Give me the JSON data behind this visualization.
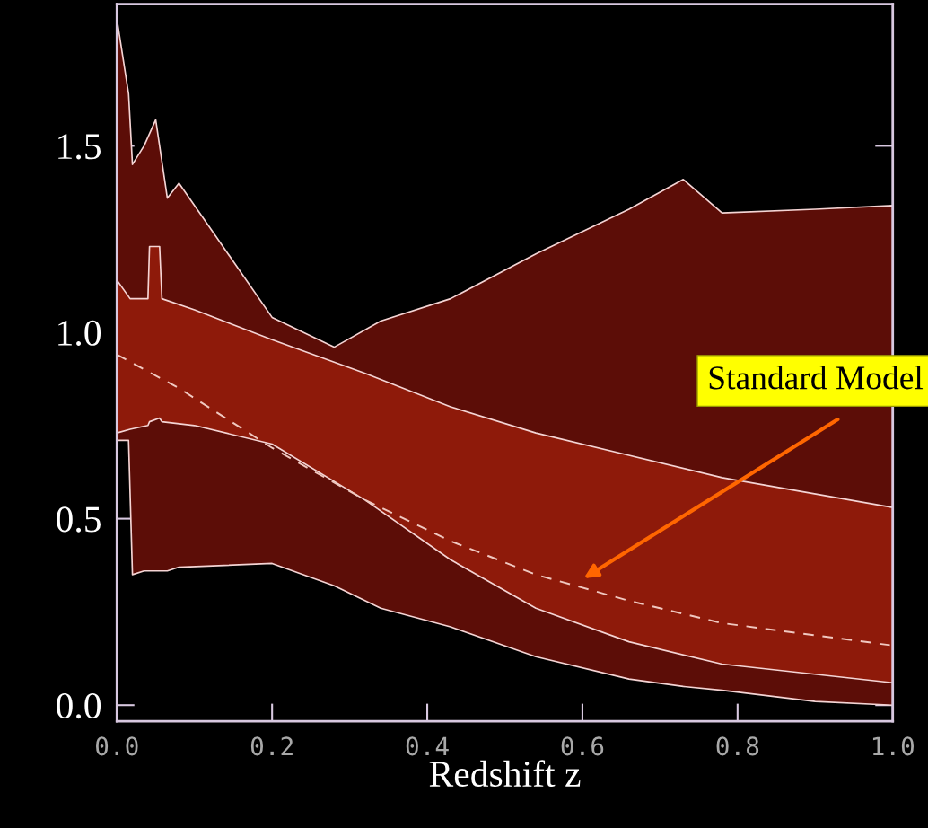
{
  "chart_data": {
    "type": "line",
    "xlabel": "Redshift z",
    "xlim": [
      0,
      1.0
    ],
    "ylim": [
      -0.043,
      1.88
    ],
    "xticks": [
      {
        "value": 0,
        "label": "0.0"
      },
      {
        "value": 0.2,
        "label": "0.2"
      },
      {
        "value": 0.4,
        "label": "0.4"
      },
      {
        "value": 0.6,
        "label": "0.6"
      },
      {
        "value": 0.8,
        "label": "0.8"
      },
      {
        "value": 1.0,
        "label": "1.0"
      }
    ],
    "yticks": [
      {
        "value": 0,
        "label": "0.0"
      },
      {
        "value": 0.5,
        "label": "0.5"
      },
      {
        "value": 1.0,
        "label": "1.0"
      },
      {
        "value": 1.5,
        "label": "1.5"
      }
    ],
    "grid": false,
    "series": [
      {
        "color": "#5c0d07",
        "x": [
          0,
          0.015,
          0.02,
          0.035,
          0.05,
          0.065,
          0.08,
          0.2,
          0.28,
          0.34,
          0.43,
          0.54,
          0.66,
          0.73,
          0.78,
          0.9,
          1.0
        ],
        "values": [
          null,
          null,
          null,
          null,
          null,
          null,
          null,
          null,
          null,
          null,
          null,
          null,
          null,
          null,
          null,
          null,
          null
        ],
        "upper": [
          1.84,
          1.64,
          1.45,
          1.5,
          1.57,
          1.36,
          1.4,
          1.04,
          0.96,
          1.03,
          1.09,
          1.21,
          1.33,
          1.41,
          1.32,
          1.33,
          1.34
        ],
        "lower": [
          0.71,
          0.71,
          0.35,
          0.36,
          0.36,
          0.36,
          0.37,
          0.38,
          0.32,
          0.26,
          0.21,
          0.13,
          0.07,
          0.05,
          0.04,
          0.01,
          0.0
        ]
      },
      {
        "color": "#8e1a0a",
        "x": [
          0,
          0.017,
          0.04,
          0.042,
          0.055,
          0.058,
          0.1,
          0.2,
          0.32,
          0.43,
          0.54,
          0.66,
          0.78,
          1.0
        ],
        "values": [
          null,
          null,
          null,
          null,
          null,
          null,
          null,
          null,
          null,
          null,
          null,
          null,
          null,
          null
        ],
        "upper": [
          1.14,
          1.09,
          1.09,
          1.23,
          1.23,
          1.09,
          1.06,
          0.98,
          0.89,
          0.8,
          0.73,
          0.67,
          0.61,
          0.53
        ],
        "lower": [
          0.73,
          0.74,
          0.75,
          0.76,
          0.77,
          0.76,
          0.75,
          0.7,
          0.55,
          0.39,
          0.26,
          0.17,
          0.11,
          0.06
        ]
      },
      {
        "color": "#f0c8c0",
        "line_style": "dashed",
        "x": [
          0,
          0.08,
          0.2,
          0.32,
          0.43,
          0.54,
          0.66,
          0.78,
          1.0
        ],
        "values": [
          0.94,
          0.85,
          0.69,
          0.55,
          0.44,
          0.35,
          0.28,
          0.22,
          0.16
        ]
      }
    ],
    "annotations": [
      "Standard Model"
    ]
  }
}
